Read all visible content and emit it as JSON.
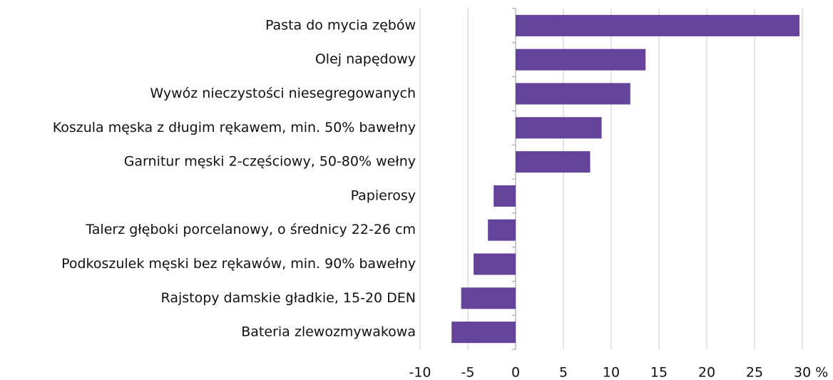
{
  "chart_data": {
    "type": "hbar",
    "categories": [
      "Pasta do mycia zębów",
      "Olej napędowy",
      "Wywóz nieczystości niesegregowanych",
      "Koszula męska z długim rękawem, min. 50% bawełny",
      "Garnitur męski 2-częściowy, 50-80% wełny",
      "Papierosy",
      "Talerz głęboki porcelanowy, o średnicy 22-26 cm",
      "Podkoszulek męski bez rękawów, min. 90% bawełny",
      "Rajstopy damskie gładkie, 15-20 DEN",
      "Bateria zlewozmywakowa"
    ],
    "values": [
      29.7,
      13.6,
      12.0,
      9.0,
      7.8,
      -2.3,
      -2.9,
      -4.4,
      -5.7,
      -6.7
    ],
    "color": "#65439b",
    "xlim": [
      -10,
      30
    ],
    "xticks": [
      -10,
      -5,
      0,
      5,
      10,
      15,
      20,
      25,
      {
        "value": 30,
        "label": "30 %"
      }
    ],
    "grid": true
  }
}
